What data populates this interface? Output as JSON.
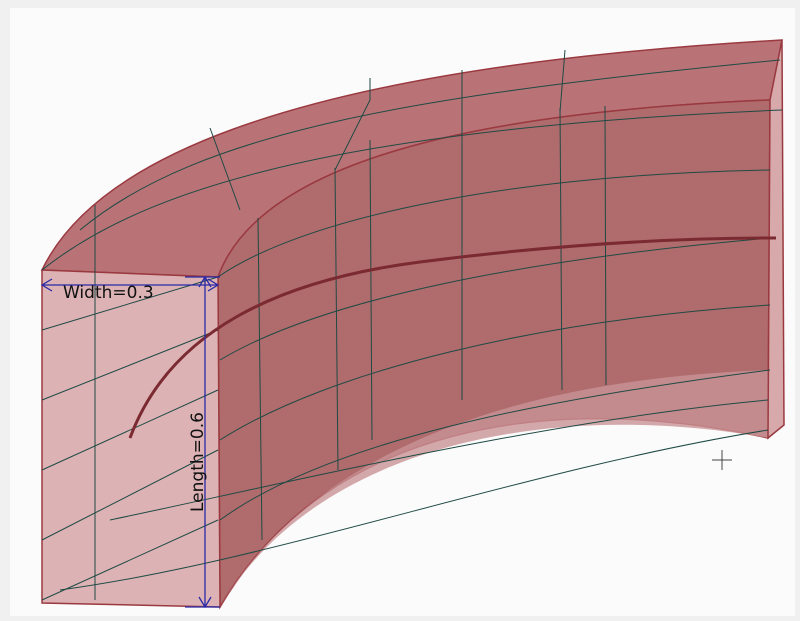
{
  "dimensions": {
    "width": "Width=0.3",
    "length": "Length=0.6"
  }
}
